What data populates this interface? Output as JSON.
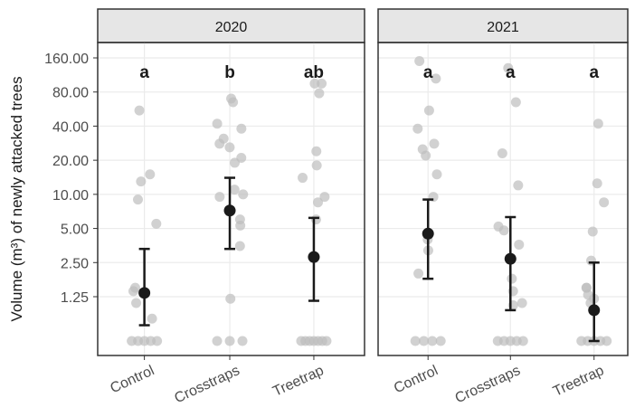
{
  "chart_data": {
    "type": "scatter",
    "ylabel": "Volume (m³) of newly attacked trees",
    "y_scale": "log",
    "y_ticks": [
      "160.00",
      "80.00",
      "40.00",
      "20.00",
      "10.00",
      "5.00",
      "2.50",
      "1.25"
    ],
    "y_tick_values": [
      160,
      80,
      40,
      20,
      10,
      5,
      2.5,
      1.25
    ],
    "ylim": [
      0.6,
      200
    ],
    "zero_baseline": true,
    "categories": [
      "Control",
      "Crosstraps",
      "Treetrap"
    ],
    "colors": {
      "raw_point": "#bdbdbd",
      "mean_point": "#1a1a1a",
      "strip_bg": "#e6e6e6",
      "grid": "#ebebeb"
    },
    "panels": [
      {
        "strip": "2020",
        "groups": [
          {
            "category": "Control",
            "letter": "a",
            "mean": 1.35,
            "ci": [
              0.7,
              3.3
            ],
            "zeros": 5,
            "raw": [
              55,
              15,
              13,
              9,
              5.5,
              1.5,
              1.4,
              1.1,
              0.8
            ]
          },
          {
            "category": "Crosstraps",
            "letter": "b",
            "mean": 7.2,
            "ci": [
              3.3,
              14
            ],
            "zeros": 3,
            "raw": [
              70,
              65,
              42,
              38,
              31,
              28,
              26,
              21,
              19,
              11,
              10,
              9.5,
              6,
              5.3,
              3.5,
              1.2
            ]
          },
          {
            "category": "Treetrap",
            "letter": "ab",
            "mean": 2.8,
            "ci": [
              1.15,
              6.2
            ],
            "zeros": 7,
            "raw": [
              95,
              95,
              78,
              24,
              18,
              14,
              9.5,
              8.5,
              6
            ]
          }
        ]
      },
      {
        "strip": "2021",
        "groups": [
          {
            "category": "Control",
            "letter": "a",
            "mean": 4.5,
            "ci": [
              1.8,
              9
            ],
            "zeros": 4,
            "raw": [
              150,
              105,
              55,
              38,
              28,
              25,
              22,
              15,
              9.5,
              4,
              3.2,
              2
            ]
          },
          {
            "category": "Crosstraps",
            "letter": "a",
            "mean": 2.7,
            "ci": [
              0.95,
              6.3
            ],
            "zeros": 5,
            "raw": [
              130,
              65,
              23,
              12,
              5.2,
              4.8,
              3.6,
              1.8,
              1.4,
              1.1,
              1.05
            ]
          },
          {
            "category": "Treetrap",
            "letter": "a",
            "mean": 0.95,
            "ci": [
              0.6,
              2.5
            ],
            "zeros": 5,
            "raw": [
              42,
              12.5,
              8.5,
              4.7,
              2.6,
              1.5,
              1.5,
              1.3,
              1.2,
              1.1
            ]
          }
        ]
      }
    ]
  }
}
